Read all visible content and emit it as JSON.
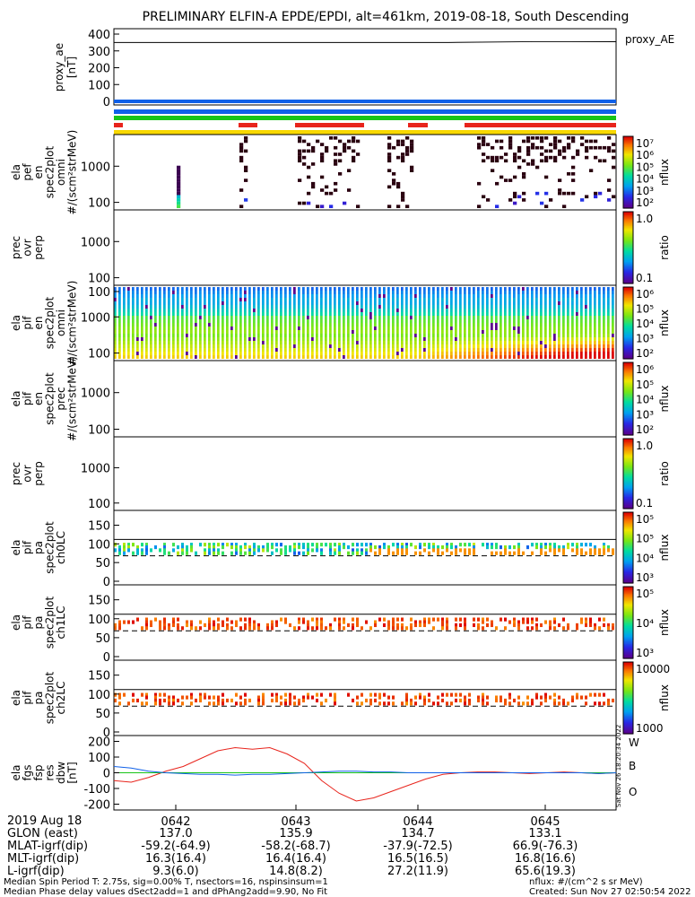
{
  "title": "PRELIMINARY ELFIN-A EPDE/EPDI, alt=461km, 2019-08-18, South Descending",
  "colors": {
    "red": "#e8241c",
    "green": "#18c418",
    "blue": "#1060e8",
    "cyan": "#10c8e8",
    "yellow": "#f8d800",
    "black": "#000000"
  },
  "chart_data": [
    {
      "type": "line",
      "panel": "proxy_ae",
      "ylabel": "proxy_ae [nT]",
      "right_label": "proxy_AE",
      "yticks": [
        "400",
        "300",
        "200",
        "100",
        "0"
      ],
      "ylim": [
        -20,
        420
      ],
      "series": [
        {
          "name": "proxy_AE",
          "values": [
            350,
            350,
            350,
            350,
            350,
            355,
            355
          ]
        }
      ]
    },
    {
      "type": "heatmap",
      "panel": "elf pef en spec2plot omni",
      "ylabel_lines": [
        "ela",
        "pef",
        "en",
        "spec2plot",
        "omni",
        "#/(scm²strMeV)"
      ],
      "yticks": [
        "1000",
        "100"
      ],
      "colorbar_ticks": [
        "10⁷",
        "10⁶",
        "10⁵",
        "10⁴",
        "10³",
        "10²"
      ],
      "colorbar_label": "nflux",
      "scale": "log"
    },
    {
      "type": "heatmap",
      "panel": "prec ovr perp (pef)",
      "ylabel_lines": [
        "prec",
        "ovr",
        "perp"
      ],
      "yticks": [
        "1000",
        "100"
      ],
      "colorbar_ticks": [
        "1.0",
        "0.1"
      ],
      "colorbar_label": "ratio",
      "scale": "log"
    },
    {
      "type": "heatmap",
      "panel": "ela pif en spec2plot omni",
      "ylabel_lines": [
        "ela",
        "pif",
        "en",
        "spec2plot",
        "omni",
        "#/(scm²strMeV)"
      ],
      "yticks": [
        "100",
        "1000",
        "100"
      ],
      "colorbar_ticks": [
        "10⁶",
        "10⁵",
        "10⁴",
        "10³",
        "10²"
      ],
      "colorbar_label": "nflux",
      "scale": "log"
    },
    {
      "type": "heatmap",
      "panel": "ela pif en spec2plot prec",
      "ylabel_lines": [
        "ela",
        "pif",
        "en",
        "spec2plot",
        "prec",
        "#/(scm²strMeV)"
      ],
      "yticks": [
        "1000",
        "100"
      ],
      "colorbar_ticks": [
        "10⁶",
        "10⁵",
        "10⁴",
        "10³",
        "10²"
      ],
      "colorbar_label": "nflux",
      "scale": "log"
    },
    {
      "type": "heatmap",
      "panel": "prec ovr perp (pif)",
      "ylabel_lines": [
        "prec",
        "ovr",
        "perp"
      ],
      "yticks": [
        "1000",
        "100"
      ],
      "colorbar_ticks": [
        "1.0",
        "0.1"
      ],
      "colorbar_label": "ratio",
      "scale": "log"
    },
    {
      "type": "heatmap",
      "panel": "ela pif pa spec2plot ch0LC",
      "ylabel_lines": [
        "ela",
        "pif",
        "pa",
        "spec2plot",
        "ch0LC"
      ],
      "yticks": [
        "150",
        "100",
        "50",
        "0"
      ],
      "ylim": [
        0,
        180
      ],
      "colorbar_ticks": [
        "10⁵",
        "10⁵",
        "10⁴",
        "10³"
      ],
      "colorbar_label": "nflux"
    },
    {
      "type": "heatmap",
      "panel": "ela pif pa spec2plot ch1LC",
      "ylabel_lines": [
        "ela",
        "pif",
        "pa",
        "spec2plot",
        "ch1LC"
      ],
      "yticks": [
        "150",
        "100",
        "50",
        "0"
      ],
      "ylim": [
        0,
        180
      ],
      "colorbar_ticks": [
        "10⁵",
        "10⁴",
        "10³"
      ],
      "colorbar_label": "nflux"
    },
    {
      "type": "heatmap",
      "panel": "ela pif pa spec2plot ch2LC",
      "ylabel_lines": [
        "ela",
        "pif",
        "pa",
        "spec2plot",
        "ch2LC"
      ],
      "yticks": [
        "150",
        "100",
        "50",
        "0"
      ],
      "ylim": [
        0,
        180
      ],
      "colorbar_ticks": [
        "10000",
        "1000"
      ],
      "colorbar_label": "nflux"
    },
    {
      "type": "line",
      "panel": "ela fgs fsp res dbw",
      "ylabel_lines": [
        "ela",
        "fgs",
        "fsp",
        "res",
        "dbw",
        "[nT]"
      ],
      "yticks": [
        "200",
        "100",
        "0",
        "-100",
        "-200"
      ],
      "ylim": [
        -220,
        220
      ],
      "series": [
        {
          "name": "W",
          "color": "#e8241c",
          "values": [
            -50,
            -60,
            -30,
            10,
            40,
            90,
            140,
            160,
            150,
            160,
            120,
            60,
            -50,
            -130,
            -180,
            -160,
            -120,
            -80,
            -40,
            -10,
            0,
            5,
            5,
            0,
            -5,
            0,
            5,
            0,
            -5,
            0
          ]
        },
        {
          "name": "B",
          "color": "#18c418",
          "values": [
            0,
            0,
            0,
            0,
            0,
            0,
            0,
            0,
            0,
            0,
            0,
            0,
            0,
            0,
            0,
            0,
            0,
            0,
            0,
            0,
            0,
            0,
            0,
            0,
            0,
            0,
            0,
            0,
            0,
            0
          ]
        },
        {
          "name": "O",
          "color": "#1060e8",
          "values": [
            40,
            30,
            10,
            0,
            -5,
            -10,
            -10,
            -15,
            -10,
            -10,
            -5,
            0,
            5,
            10,
            10,
            5,
            5,
            0,
            0,
            0,
            0,
            0,
            0,
            0,
            0,
            0,
            0,
            0,
            -5,
            0
          ]
        }
      ]
    }
  ],
  "xaxis": {
    "ticks": [
      "0642",
      "0643",
      "0644",
      "0645"
    ]
  },
  "stamp": "Sat Nov 26 18:20:34 2022",
  "table": {
    "row_labels": [
      "2019 Aug 18",
      "GLON (east)",
      "MLAT-igrf(dip)",
      "MLT-igrf(dip)",
      "L-igrf(dip)"
    ],
    "columns": [
      [
        "",
        "137.0",
        "-59.2(-64.9)",
        "16.3(16.4)",
        "9.3(6.0)"
      ],
      [
        "",
        "135.9",
        "-58.2(-68.7)",
        "16.4(16.4)",
        "14.8(8.2)"
      ],
      [
        "",
        "134.7",
        "-37.9(-72.5)",
        "16.5(16.5)",
        "27.2(11.9)"
      ],
      [
        "",
        "133.1",
        "66.9(-76.3)",
        "16.8(16.6)",
        "65.6(19.3)"
      ]
    ]
  },
  "footer": {
    "left1": "Median Spin Period T: 2.75s, sig=0.00% T, nsectors=16, nspinsinsum=1",
    "left2": "Median Phase delay values dSect2add=1 and dPhAng2add=9.90, No Fit",
    "right1": "nflux: #/(cm^2 s sr MeV)",
    "right2": "Created: Sun Nov 27 02:50:54 2022"
  }
}
